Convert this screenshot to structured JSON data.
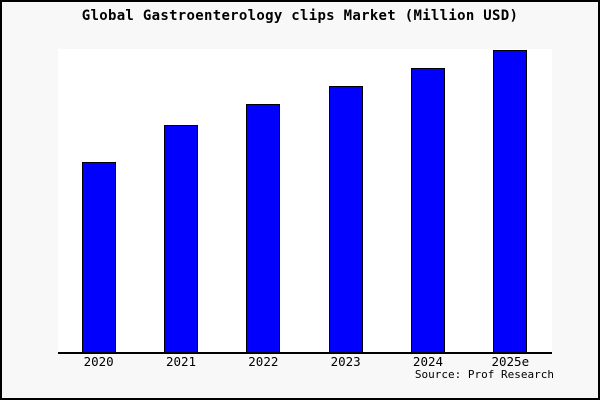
{
  "chart_data": {
    "type": "bar",
    "title": "Global Gastroenterology clips Market (Million USD)",
    "categories": [
      "2020",
      "2021",
      "2022",
      "2023",
      "2024",
      "2025e"
    ],
    "values": [
      63,
      75,
      82,
      88,
      94,
      100
    ],
    "value_scale": "relative estimate; tallest bar (2025e) = 100; y-axis has no ticks or labels",
    "xlabel": "",
    "ylabel": "",
    "ylim": [
      0,
      100
    ],
    "grid": false,
    "legend": null,
    "bar_color": "#0000fc",
    "bar_border_color": "#000000",
    "axis_color": "#000000",
    "plot_background": "#ffffff",
    "figure_background": "#f8f8f8",
    "source": "Source: Prof Research"
  }
}
